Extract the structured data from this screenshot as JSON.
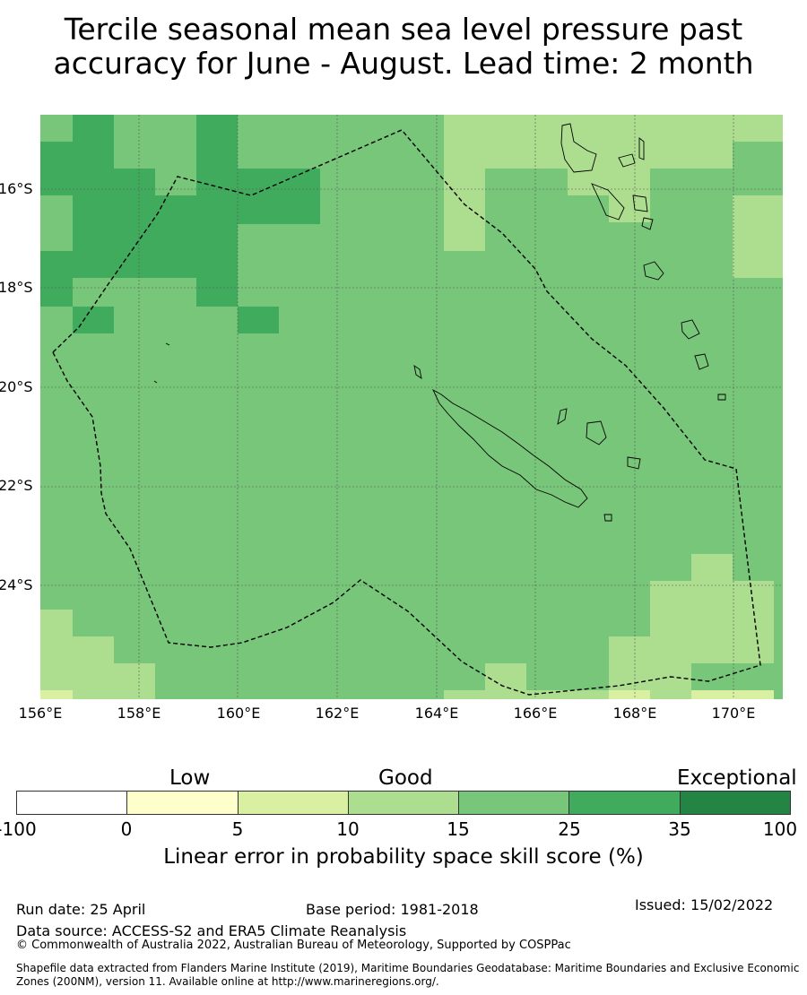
{
  "title": {
    "line1": "Tercile seasonal mean sea level pressure past",
    "line2": "accuracy for June - August. Lead time: 2 month"
  },
  "map": {
    "y_labels": [
      "16°S",
      "18°S",
      "20°S",
      "22°S",
      "24°S"
    ],
    "x_labels": [
      "156°E",
      "158°E",
      "160°E",
      "162°E",
      "164°E",
      "166°E",
      "168°E",
      "170°E"
    ],
    "colors": {
      "c0": "#ffffd4",
      "c5": "#d9f0a3",
      "c10": "#addd8e",
      "c15": "#78c679",
      "c25": "#41ab5d",
      "c35": "#238443",
      "land_outline": "#000000",
      "boundary": "#000000",
      "grid": "#555555"
    }
  },
  "colorbar": {
    "headings": [
      "Low",
      "Good",
      "Exceptional"
    ],
    "ticks": [
      "-100",
      "0",
      "5",
      "10",
      "15",
      "25",
      "35",
      "100"
    ],
    "colors": [
      "#ffffff",
      "#ffffcc",
      "#d9f0a3",
      "#addd8e",
      "#78c679",
      "#41ab5d",
      "#238443"
    ],
    "label": "Linear error in probability space skill score (%)"
  },
  "footer": {
    "run_date": "Run date: 25 April",
    "base_period": "Base period: 1981-2018",
    "issued": "Issued: 15/02/2022",
    "data_source": "Data source: ACCESS-S2 and ERA5 Climate Reanalysis",
    "copyright": "© Commonwealth of Australia 2022, Australian Bureau of Meteorology, Supported by COSPPac",
    "shapefile_line1": "Shapefile data extracted from Flanders Marine Institute (2019), Maritime Boundaries Geodatabase: Maritime Boundaries and Exclusive Economic",
    "shapefile_line2": "Zones (200NM), version 11. Available online at http://www.marineregions.org/."
  }
}
